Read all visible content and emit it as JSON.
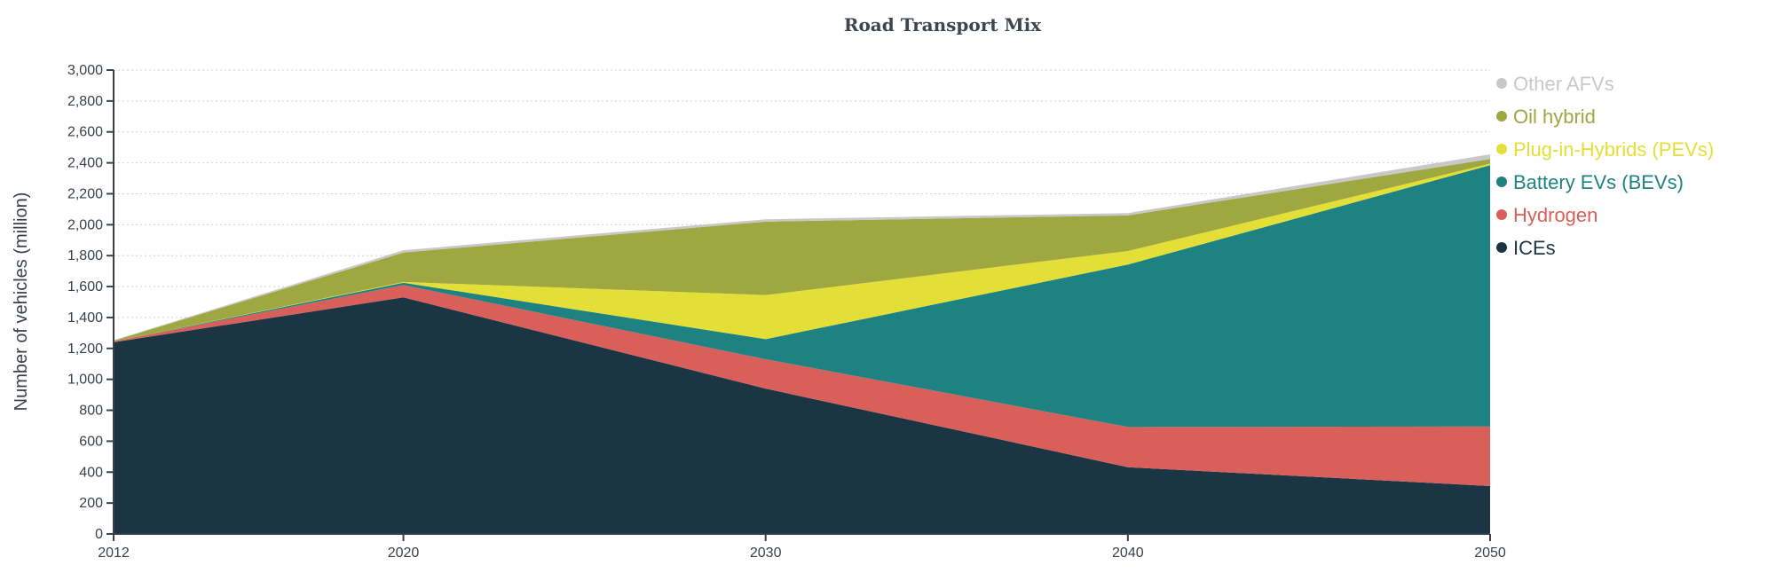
{
  "chart_data": {
    "type": "area",
    "stacked": true,
    "title": "Road Transport Mix",
    "xlabel": "",
    "ylabel": "Number of vehicles (million)",
    "x": [
      2012,
      2020,
      2030,
      2040,
      2050
    ],
    "xticks": [
      "2012",
      "2020",
      "2030",
      "2040",
      "2050"
    ],
    "ylim": [
      0,
      3000
    ],
    "yticks": [
      "0",
      "200",
      "400",
      "600",
      "800",
      "1,000",
      "1,200",
      "1,400",
      "1,600",
      "1,800",
      "2,000",
      "2,200",
      "2,400",
      "2,600",
      "2,800",
      "3,000"
    ],
    "grid": "horizontal dotted",
    "legend_position": "right",
    "series": [
      {
        "name": "ICEs",
        "color": "#1c3545",
        "values": [
          1240,
          1530,
          940,
          432,
          310
        ]
      },
      {
        "name": "Hydrogen",
        "color": "#d95f5b",
        "values": [
          5,
          80,
          190,
          260,
          385
        ]
      },
      {
        "name": "Battery EVs (BEVs)",
        "color": "#1e8282",
        "values": [
          0,
          15,
          130,
          1050,
          1690
        ]
      },
      {
        "name": "Plug-in-Hybrids (PEVs)",
        "color": "#e3df36",
        "values": [
          0,
          5,
          285,
          88,
          10
        ]
      },
      {
        "name": "Oil hybrid",
        "color": "#9ea740",
        "values": [
          5,
          190,
          475,
          230,
          30
        ]
      },
      {
        "name": "Other AFVs",
        "color": "#c8c8c8",
        "values": [
          3,
          15,
          15,
          15,
          30
        ]
      }
    ]
  }
}
